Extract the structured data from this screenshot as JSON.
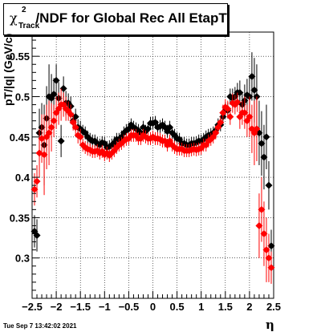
{
  "chart_data": {
    "type": "scatter",
    "title": {
      "symbol": "χ",
      "superscript": "2",
      "subscript": "Track",
      "text": "/NDF for Global Rec All EtapT"
    },
    "xlabel": "η",
    "ylabel": "pT/|q| (GeV/c)",
    "xlim": [
      -2.5,
      2.5
    ],
    "ylim": [
      0.25,
      0.58
    ],
    "x_ticks": [
      -2.5,
      -2,
      -1.5,
      -1,
      -0.5,
      0,
      0.5,
      1,
      1.5,
      2,
      2.5
    ],
    "x_tick_labels": [
      "−2.5",
      "−2",
      "−1.5",
      "−1",
      "−0.5",
      "0",
      "0.5",
      "1",
      "1.5",
      "2",
      "2.5"
    ],
    "y_ticks": [
      0.3,
      0.35,
      0.4,
      0.45,
      0.5,
      0.55
    ],
    "y_tick_labels": [
      "0.3",
      "0.35",
      "0.4",
      "0.45",
      "0.5",
      "0.55"
    ],
    "grid": true,
    "legend": "none",
    "timestamp": "Tue Sep  7 13:42:02 2021",
    "series": [
      {
        "color": "#000000",
        "marker": "diamond",
        "x": [
          -2.45,
          -2.4,
          -2.35,
          -2.3,
          -2.25,
          -2.2,
          -2.15,
          -2.1,
          -2.05,
          -2.0,
          -1.95,
          -1.9,
          -1.85,
          -1.8,
          -1.75,
          -1.7,
          -1.65,
          -1.6,
          -1.55,
          -1.5,
          -1.45,
          -1.4,
          -1.35,
          -1.3,
          -1.25,
          -1.2,
          -1.15,
          -1.1,
          -1.05,
          -1.0,
          -0.95,
          -0.9,
          -0.85,
          -0.8,
          -0.75,
          -0.7,
          -0.65,
          -0.6,
          -0.55,
          -0.5,
          -0.45,
          -0.4,
          -0.35,
          -0.3,
          -0.25,
          -0.2,
          -0.15,
          -0.1,
          -0.05,
          0.0,
          0.05,
          0.1,
          0.15,
          0.2,
          0.25,
          0.3,
          0.35,
          0.4,
          0.45,
          0.5,
          0.55,
          0.6,
          0.65,
          0.7,
          0.75,
          0.8,
          0.85,
          0.9,
          0.95,
          1.0,
          1.05,
          1.1,
          1.15,
          1.2,
          1.25,
          1.3,
          1.35,
          1.4,
          1.45,
          1.5,
          1.55,
          1.6,
          1.65,
          1.7,
          1.75,
          1.8,
          1.85,
          1.9,
          1.95,
          2.0,
          2.05,
          2.1,
          2.15,
          2.2,
          2.25,
          2.3,
          2.35,
          2.4,
          2.45
        ],
        "y": [
          0.333,
          0.328,
          0.455,
          0.462,
          0.44,
          0.473,
          0.5,
          0.498,
          0.503,
          0.52,
          0.498,
          0.445,
          0.51,
          0.492,
          0.492,
          0.488,
          0.47,
          0.475,
          0.462,
          0.46,
          0.457,
          0.455,
          0.45,
          0.447,
          0.445,
          0.445,
          0.442,
          0.44,
          0.443,
          0.442,
          0.437,
          0.438,
          0.44,
          0.443,
          0.447,
          0.447,
          0.45,
          0.455,
          0.458,
          0.46,
          0.465,
          0.462,
          0.46,
          0.458,
          0.455,
          0.462,
          0.457,
          0.46,
          0.467,
          0.467,
          0.468,
          0.462,
          0.463,
          0.465,
          0.462,
          0.457,
          0.462,
          0.455,
          0.452,
          0.448,
          0.447,
          0.442,
          0.442,
          0.44,
          0.44,
          0.442,
          0.442,
          0.443,
          0.445,
          0.445,
          0.447,
          0.45,
          0.452,
          0.453,
          0.455,
          0.458,
          0.465,
          0.465,
          0.475,
          0.483,
          0.483,
          0.5,
          0.498,
          0.5,
          0.505,
          0.505,
          0.49,
          0.495,
          0.502,
          0.5,
          0.525,
          0.508,
          0.5,
          0.455,
          0.442,
          0.425,
          0.45,
          0.39,
          0.315
        ],
        "err": [
          0.02,
          0.02,
          0.03,
          0.03,
          0.05,
          0.04,
          0.04,
          0.03,
          0.02,
          0.02,
          0.02,
          0.02,
          0.015,
          0.015,
          0.012,
          0.012,
          0.01,
          0.01,
          0.01,
          0.01,
          0.008,
          0.008,
          0.008,
          0.008,
          0.008,
          0.008,
          0.008,
          0.008,
          0.008,
          0.008,
          0.008,
          0.008,
          0.008,
          0.008,
          0.008,
          0.008,
          0.008,
          0.008,
          0.008,
          0.008,
          0.008,
          0.008,
          0.008,
          0.008,
          0.008,
          0.008,
          0.008,
          0.008,
          0.008,
          0.008,
          0.008,
          0.008,
          0.008,
          0.008,
          0.008,
          0.008,
          0.008,
          0.008,
          0.008,
          0.008,
          0.008,
          0.008,
          0.008,
          0.008,
          0.008,
          0.008,
          0.008,
          0.008,
          0.008,
          0.008,
          0.008,
          0.008,
          0.008,
          0.008,
          0.008,
          0.008,
          0.008,
          0.008,
          0.01,
          0.01,
          0.01,
          0.01,
          0.012,
          0.012,
          0.012,
          0.015,
          0.015,
          0.02,
          0.02,
          0.025,
          0.03,
          0.04,
          0.04,
          0.04,
          0.04,
          0.04,
          0.04,
          0.03,
          0.02
        ]
      },
      {
        "color": "#ff0000",
        "marker": "diamond",
        "x": [
          -2.45,
          -2.4,
          -2.35,
          -2.3,
          -2.25,
          -2.2,
          -2.15,
          -2.1,
          -2.05,
          -2.0,
          -1.95,
          -1.9,
          -1.85,
          -1.8,
          -1.75,
          -1.7,
          -1.65,
          -1.6,
          -1.55,
          -1.5,
          -1.45,
          -1.4,
          -1.35,
          -1.3,
          -1.25,
          -1.2,
          -1.15,
          -1.1,
          -1.05,
          -1.0,
          -0.95,
          -0.9,
          -0.85,
          -0.8,
          -0.75,
          -0.7,
          -0.65,
          -0.6,
          -0.55,
          -0.5,
          -0.45,
          -0.4,
          -0.35,
          -0.3,
          -0.25,
          -0.2,
          -0.15,
          -0.1,
          -0.05,
          0.0,
          0.05,
          0.1,
          0.15,
          0.2,
          0.25,
          0.3,
          0.35,
          0.4,
          0.45,
          0.5,
          0.55,
          0.6,
          0.65,
          0.7,
          0.75,
          0.8,
          0.85,
          0.9,
          0.95,
          1.0,
          1.05,
          1.1,
          1.15,
          1.2,
          1.25,
          1.3,
          1.35,
          1.4,
          1.45,
          1.5,
          1.55,
          1.6,
          1.65,
          1.7,
          1.75,
          1.8,
          1.85,
          1.9,
          1.95,
          2.0,
          2.05,
          2.1,
          2.15,
          2.2,
          2.25,
          2.3,
          2.35,
          2.4,
          2.45
        ],
        "y": [
          0.385,
          0.395,
          0.43,
          0.448,
          0.428,
          0.45,
          0.455,
          0.462,
          0.47,
          0.48,
          0.485,
          0.49,
          0.49,
          0.485,
          0.482,
          0.478,
          0.468,
          0.462,
          0.452,
          0.45,
          0.44,
          0.437,
          0.435,
          0.434,
          0.432,
          0.432,
          0.433,
          0.43,
          0.432,
          0.428,
          0.43,
          0.427,
          0.43,
          0.433,
          0.437,
          0.44,
          0.442,
          0.445,
          0.447,
          0.448,
          0.452,
          0.452,
          0.452,
          0.448,
          0.448,
          0.452,
          0.45,
          0.448,
          0.448,
          0.45,
          0.448,
          0.448,
          0.447,
          0.445,
          0.445,
          0.44,
          0.445,
          0.44,
          0.437,
          0.435,
          0.435,
          0.435,
          0.433,
          0.433,
          0.433,
          0.434,
          0.435,
          0.434,
          0.435,
          0.436,
          0.44,
          0.44,
          0.445,
          0.447,
          0.45,
          0.455,
          0.462,
          0.468,
          0.48,
          0.487,
          0.485,
          0.475,
          0.492,
          0.49,
          0.493,
          0.475,
          0.48,
          0.48,
          0.47,
          0.475,
          0.46,
          0.455,
          0.46,
          0.34,
          0.36,
          0.33,
          0.31,
          0.3,
          0.288
        ],
        "err": [
          0.02,
          0.02,
          0.03,
          0.03,
          0.05,
          0.04,
          0.04,
          0.03,
          0.02,
          0.02,
          0.02,
          0.02,
          0.015,
          0.015,
          0.012,
          0.012,
          0.01,
          0.01,
          0.01,
          0.01,
          0.008,
          0.008,
          0.008,
          0.008,
          0.008,
          0.008,
          0.008,
          0.008,
          0.008,
          0.008,
          0.008,
          0.008,
          0.008,
          0.008,
          0.008,
          0.008,
          0.008,
          0.008,
          0.008,
          0.008,
          0.008,
          0.008,
          0.008,
          0.008,
          0.008,
          0.008,
          0.008,
          0.008,
          0.008,
          0.008,
          0.008,
          0.008,
          0.008,
          0.008,
          0.008,
          0.008,
          0.008,
          0.008,
          0.008,
          0.008,
          0.008,
          0.008,
          0.008,
          0.008,
          0.008,
          0.008,
          0.008,
          0.008,
          0.008,
          0.008,
          0.008,
          0.008,
          0.008,
          0.008,
          0.008,
          0.008,
          0.008,
          0.008,
          0.01,
          0.01,
          0.01,
          0.01,
          0.012,
          0.012,
          0.012,
          0.015,
          0.015,
          0.02,
          0.02,
          0.025,
          0.03,
          0.04,
          0.04,
          0.04,
          0.04,
          0.04,
          0.04,
          0.03,
          0.02
        ]
      }
    ]
  }
}
